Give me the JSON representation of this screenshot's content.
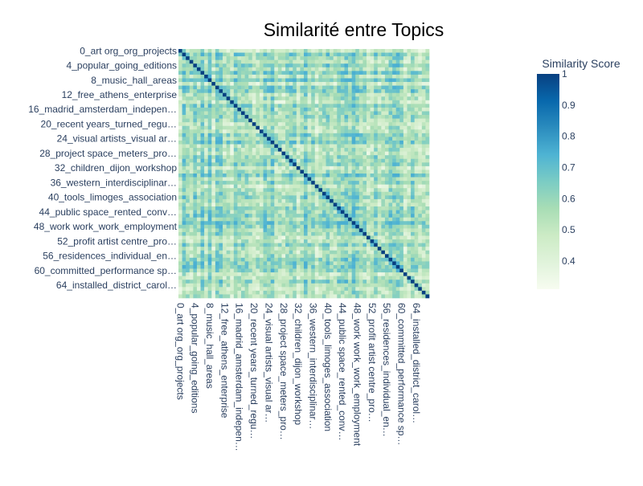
{
  "chart_data": {
    "type": "heatmap",
    "title": "Similarité entre Topics",
    "n_topics": 68,
    "tick_labels": [
      "0_art org_org_projects",
      "4_popular_going_editions",
      "8_music_hall_areas",
      "12_free_athens_enterprise",
      "16_madrid_amsterdam_indepen…",
      "20_recent years_turned_regu…",
      "24_visual artists_visual ar…",
      "28_project space_meters_pro…",
      "32_children_dijon_workshop",
      "36_western_interdisciplinar…",
      "40_tools_limoges_association",
      "44_public space_rented_conv…",
      "48_work work_work_employment",
      "52_profit artist centre_pro…",
      "56_residences_individual_en…",
      "60_committed_performance sp…",
      "64_installed_district_carol…"
    ],
    "tick_indices": [
      0,
      4,
      8,
      12,
      16,
      20,
      24,
      28,
      32,
      36,
      40,
      44,
      48,
      52,
      56,
      60,
      64
    ],
    "values_note": "",
    "colorbar": {
      "title": "Similarity Score",
      "min": 0.31,
      "max": 1.0,
      "ticks": [
        0.4,
        0.5,
        0.6,
        0.7,
        0.8,
        0.9,
        1
      ],
      "tick_labels": [
        "0.4",
        "0.5",
        "0.6",
        "0.7",
        "0.8",
        "0.9",
        "1"
      ],
      "colorscale": [
        "#f7fcf0",
        "#e0f3db",
        "#ccebc5",
        "#a8ddb5",
        "#7bccc4",
        "#4eb3d3",
        "#2b8cbe",
        "#0868ac",
        "#084081"
      ]
    },
    "diagonal_value": 1.0,
    "off_diagonal_range": [
      0.35,
      0.75
    ]
  }
}
